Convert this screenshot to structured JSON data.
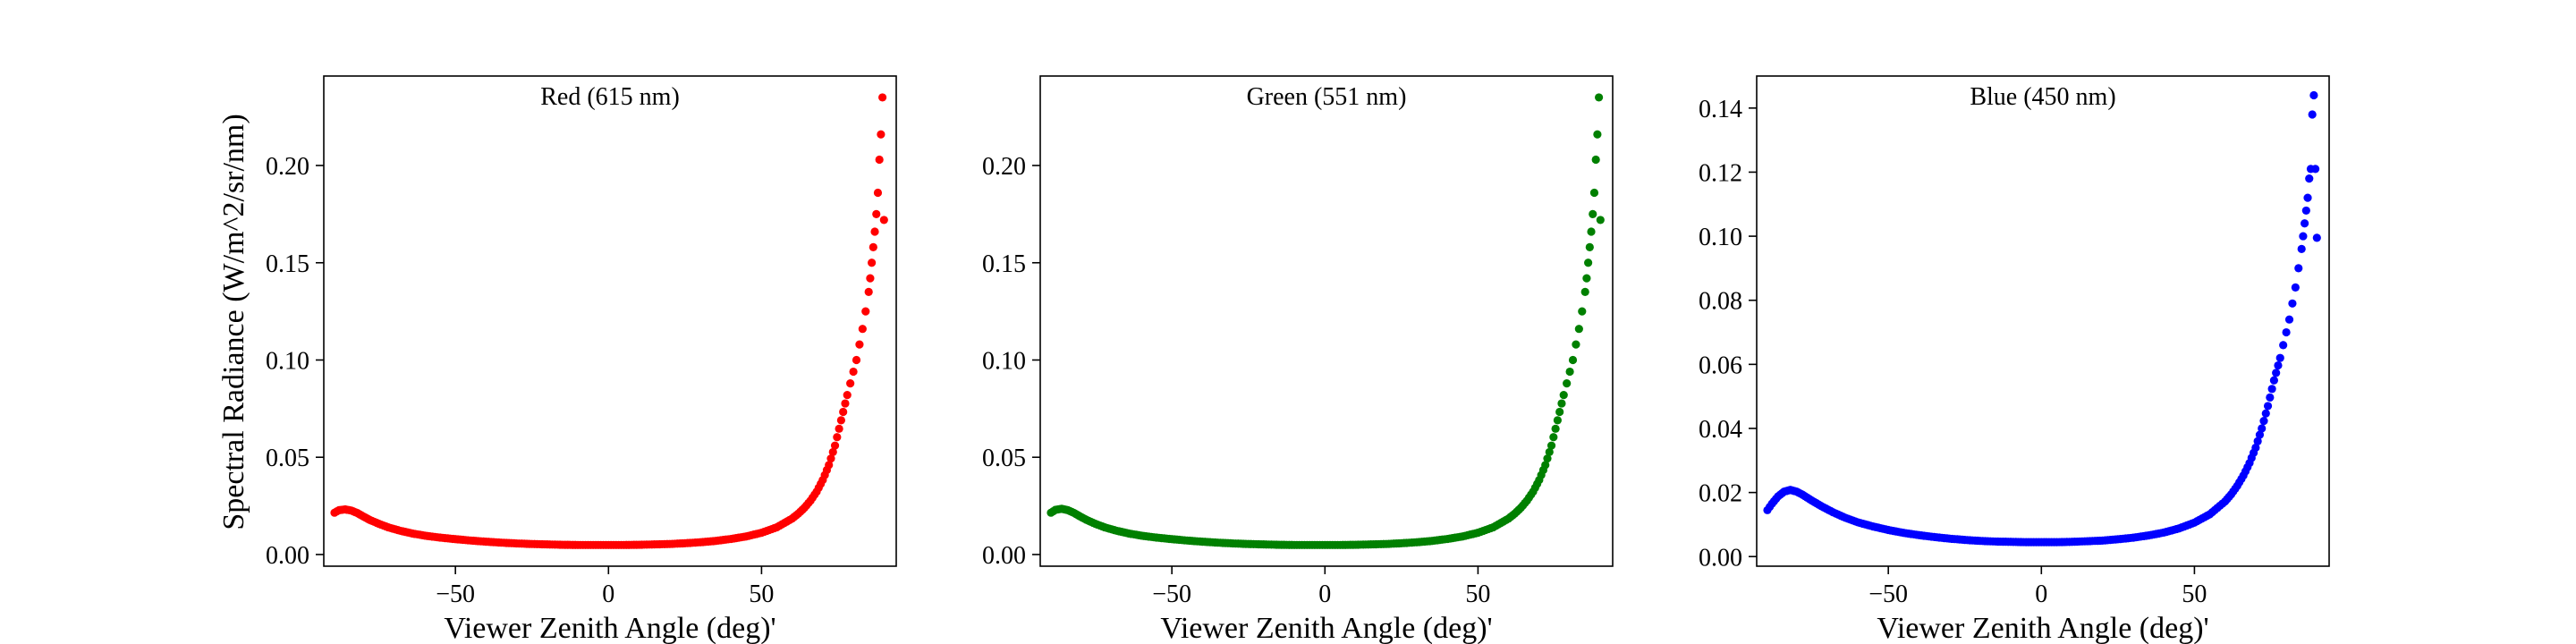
{
  "figure": {
    "shared_ylabel": "Spectral Radiance (W/m^2/sr/nm)"
  },
  "chart_data": [
    {
      "type": "scatter",
      "title": "Red (615 nm)",
      "xlabel": "Viewer Zenith Angle (deg)'",
      "ylabel": "Spectral Radiance (W/m^2/sr/nm)",
      "xlim": [
        -93,
        94
      ],
      "ylim": [
        -0.006,
        0.246
      ],
      "xticks": [
        -50,
        0,
        50
      ],
      "xtick_labels": [
        "−50",
        "0",
        "50"
      ],
      "yticks": [
        0.0,
        0.05,
        0.1,
        0.15,
        0.2
      ],
      "ytick_labels": [
        "0.00",
        "0.05",
        "0.10",
        "0.15",
        "0.20"
      ],
      "color": "#ff0000",
      "grid": false,
      "series": [
        {
          "x": [
            -89.5,
            -88,
            -86,
            -84,
            -82,
            -80,
            -78,
            -75,
            -72,
            -68,
            -64,
            -60,
            -55,
            -50,
            -45,
            -40,
            -35,
            -30,
            -25,
            -20,
            -15,
            -10,
            -5,
            0,
            5,
            10,
            15,
            20,
            25,
            30,
            35,
            40,
            45,
            50,
            55,
            60,
            62,
            64,
            66,
            68,
            70,
            72,
            74,
            76,
            78,
            79,
            80,
            81,
            82,
            83,
            84,
            85,
            85.5,
            86,
            86.5,
            87,
            87.5,
            88,
            88.5,
            89,
            89.5,
            90
          ],
          "y": [
            0.0215,
            0.0228,
            0.0232,
            0.0226,
            0.0213,
            0.0195,
            0.0178,
            0.0158,
            0.014,
            0.0122,
            0.0108,
            0.0097,
            0.0087,
            0.0079,
            0.0072,
            0.0066,
            0.0061,
            0.0057,
            0.0054,
            0.0052,
            0.005,
            0.0049,
            0.0049,
            0.0049,
            0.0049,
            0.005,
            0.0052,
            0.0054,
            0.0058,
            0.0063,
            0.007,
            0.008,
            0.0093,
            0.0112,
            0.014,
            0.0185,
            0.021,
            0.024,
            0.0277,
            0.0323,
            0.0383,
            0.046,
            0.056,
            0.069,
            0.082,
            0.088,
            0.094,
            0.1,
            0.108,
            0.116,
            0.125,
            0.135,
            0.142,
            0.15,
            0.158,
            0.166,
            0.175,
            0.186,
            0.203,
            0.216,
            0.235,
            0.172
          ]
        }
      ]
    },
    {
      "type": "scatter",
      "title": "Green (551 nm)",
      "xlabel": "Viewer Zenith Angle (deg)'",
      "ylabel": "",
      "xlim": [
        -93,
        94
      ],
      "ylim": [
        -0.006,
        0.246
      ],
      "xticks": [
        -50,
        0,
        50
      ],
      "xtick_labels": [
        "−50",
        "0",
        "50"
      ],
      "yticks": [
        0.0,
        0.05,
        0.1,
        0.15,
        0.2
      ],
      "ytick_labels": [
        "0.00",
        "0.05",
        "0.10",
        "0.15",
        "0.20"
      ],
      "color": "#008000",
      "grid": false,
      "series": [
        {
          "x": [
            -89.5,
            -88,
            -86,
            -84,
            -82,
            -80,
            -78,
            -75,
            -72,
            -68,
            -64,
            -60,
            -55,
            -50,
            -45,
            -40,
            -35,
            -30,
            -25,
            -20,
            -15,
            -10,
            -5,
            0,
            5,
            10,
            15,
            20,
            25,
            30,
            35,
            40,
            45,
            50,
            55,
            60,
            62,
            64,
            66,
            68,
            70,
            72,
            74,
            76,
            78,
            79,
            80,
            81,
            82,
            83,
            84,
            85,
            85.5,
            86,
            86.5,
            87,
            87.5,
            88,
            88.5,
            89,
            89.5,
            90
          ],
          "y": [
            0.0215,
            0.023,
            0.0235,
            0.0228,
            0.0214,
            0.0196,
            0.0179,
            0.0158,
            0.014,
            0.0122,
            0.0108,
            0.0097,
            0.0087,
            0.0079,
            0.0072,
            0.0066,
            0.0061,
            0.0057,
            0.0054,
            0.0052,
            0.005,
            0.0049,
            0.0049,
            0.0049,
            0.0049,
            0.005,
            0.0052,
            0.0054,
            0.0058,
            0.0063,
            0.007,
            0.008,
            0.0093,
            0.0112,
            0.014,
            0.0185,
            0.021,
            0.024,
            0.0277,
            0.0323,
            0.0383,
            0.046,
            0.056,
            0.069,
            0.082,
            0.088,
            0.094,
            0.1,
            0.108,
            0.116,
            0.125,
            0.135,
            0.142,
            0.15,
            0.158,
            0.166,
            0.175,
            0.186,
            0.203,
            0.216,
            0.235,
            0.172
          ]
        }
      ]
    },
    {
      "type": "scatter",
      "title": "Blue (450 nm)",
      "xlabel": "Viewer Zenith Angle (deg)'",
      "ylabel": "",
      "xlim": [
        -93,
        94
      ],
      "ylim": [
        -0.003,
        0.15
      ],
      "xticks": [
        -50,
        0,
        50
      ],
      "xtick_labels": [
        "−50",
        "0",
        "50"
      ],
      "yticks": [
        0.0,
        0.02,
        0.04,
        0.06,
        0.08,
        0.1,
        0.12,
        0.14
      ],
      "ytick_labels": [
        "0.00",
        "0.02",
        "0.04",
        "0.06",
        "0.08",
        "0.10",
        "0.12",
        "0.14"
      ],
      "color": "#0000ff",
      "grid": false,
      "series": [
        {
          "x": [
            -89.5,
            -88,
            -86,
            -84,
            -82,
            -80,
            -78,
            -75,
            -72,
            -68,
            -64,
            -60,
            -55,
            -50,
            -45,
            -40,
            -35,
            -30,
            -25,
            -20,
            -15,
            -10,
            -5,
            0,
            5,
            10,
            15,
            20,
            25,
            30,
            35,
            40,
            45,
            50,
            55,
            60,
            62,
            64,
            66,
            68,
            70,
            72,
            74,
            76,
            78,
            79,
            80,
            81,
            82,
            83,
            84,
            85,
            85.5,
            86,
            86.5,
            87,
            87.5,
            88,
            88.5,
            89,
            89.5,
            90
          ],
          "y": [
            0.0145,
            0.0165,
            0.0188,
            0.0203,
            0.0208,
            0.0203,
            0.0193,
            0.0175,
            0.0158,
            0.0138,
            0.0121,
            0.0107,
            0.0094,
            0.0083,
            0.0074,
            0.0067,
            0.0061,
            0.0056,
            0.0052,
            0.0049,
            0.0047,
            0.0046,
            0.0045,
            0.0045,
            0.0045,
            0.0046,
            0.0048,
            0.005,
            0.0054,
            0.0059,
            0.0066,
            0.0075,
            0.0088,
            0.0106,
            0.0132,
            0.0172,
            0.0194,
            0.0221,
            0.0253,
            0.0292,
            0.034,
            0.04,
            0.047,
            0.055,
            0.062,
            0.066,
            0.07,
            0.074,
            0.079,
            0.084,
            0.09,
            0.096,
            0.1,
            0.104,
            0.108,
            0.112,
            0.118,
            0.121,
            0.138,
            0.144,
            0.121,
            0.0995
          ]
        }
      ]
    }
  ]
}
